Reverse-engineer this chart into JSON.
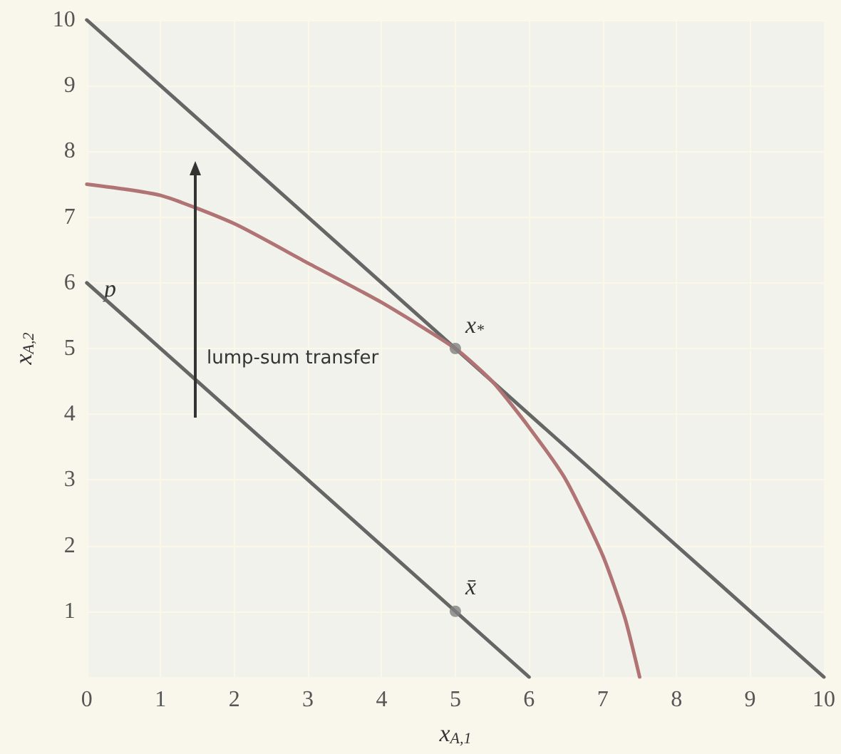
{
  "chart_data": {
    "type": "line",
    "xlabel": "x$_{A,1}$",
    "ylabel": "x$_{A,2}$",
    "series": [
      {
        "color": "#666666",
        "x": [
          0,
          6
        ],
        "values": [
          6,
          0
        ]
      },
      {
        "color": "#666666",
        "x": [
          0,
          10
        ],
        "values": [
          10,
          0
        ]
      },
      {
        "color": "#b07474",
        "x": [
          0,
          1,
          2,
          3,
          4,
          5,
          5.5,
          6,
          6.5,
          7,
          7.3,
          7.5
        ],
        "values": [
          7.5,
          7.33,
          6.9,
          6.3,
          5.7,
          5.0,
          4.5,
          3.8,
          3.0,
          1.85,
          0.9,
          0
        ]
      },
      {
        "type": "scatter",
        "color": "#808080",
        "x": [
          5,
          5
        ],
        "values": [
          1,
          5
        ]
      }
    ],
    "annotations": [
      {
        "text": "x$_{*}$",
        "x": 5,
        "y": 5
      },
      {
        "text": "x̄",
        "x": 5,
        "y": 1
      },
      "p",
      "lump-sum transfer"
    ],
    "xlim": [
      0,
      10
    ],
    "ylim": [
      0,
      10
    ],
    "xticks": [
      0,
      1,
      2,
      3,
      4,
      5,
      6,
      7,
      8,
      9,
      10
    ],
    "yticks": [
      1,
      2,
      3,
      4,
      5,
      6,
      7,
      8,
      9,
      10
    ],
    "grid": true,
    "line_style": "solid"
  }
}
